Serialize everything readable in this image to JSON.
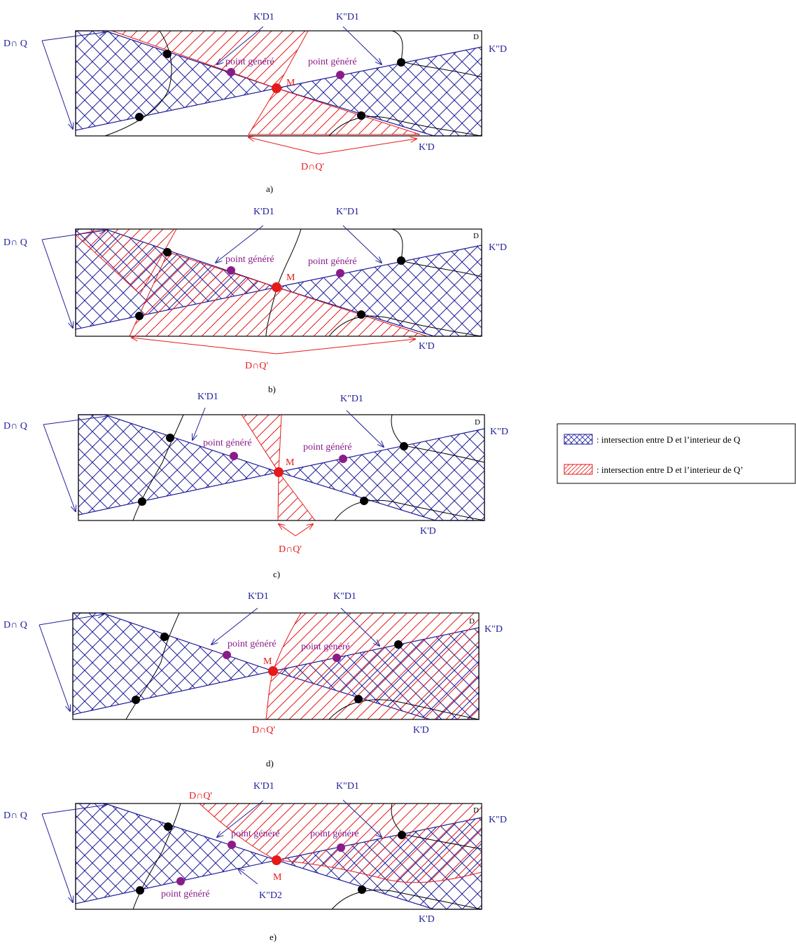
{
  "colors": {
    "blue": "#1f1f9a",
    "red": "#e51a1a",
    "purple": "#8a1c8a",
    "black": "#000000"
  },
  "labels": {
    "dq": "D∩ Q",
    "dq_prime": "D∩Q'",
    "d": "D",
    "m": "M",
    "point": "point généré",
    "k_prime_d1": "K'D1",
    "k_second_d1": "K\"D1",
    "k_prime_d": "K'D",
    "k_second_d": "K\"D",
    "k_second_d2": "K\"D2"
  },
  "captions": [
    "a)",
    "b)",
    "c)",
    "d)",
    "e)"
  ],
  "legend": {
    "q_text": ": intersection entre D et l’interieur de Q",
    "q_prime_text": ": intersection entre D et l’interieur de Q’"
  }
}
